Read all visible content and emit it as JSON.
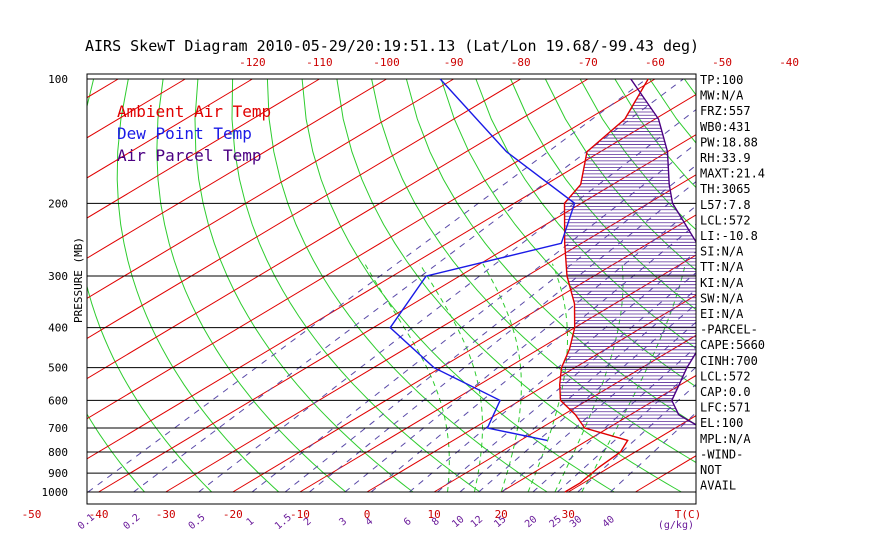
{
  "chart_data": {
    "type": "skew-t",
    "title": "AIRS SkewT Diagram 2010-05-29/20:19:51.13 (Lat/Lon 19.68/-99.43 deg)",
    "ylabel": "PRESSURE (MB)",
    "pressure_axis": {
      "scale": "log",
      "range": [
        1000,
        100
      ],
      "ticks": [
        "100",
        "200",
        "300",
        "400",
        "500",
        "600",
        "700",
        "800",
        "900",
        "1000"
      ]
    },
    "top_temp_ticks": [
      "-120",
      "-110",
      "-100",
      "-90",
      "-80",
      "-70",
      "-60",
      "-50",
      "-40"
    ],
    "bottom_temp_ticks": [
      "-50",
      "-40",
      "-30",
      "-20",
      "-10",
      "0",
      "10",
      "20",
      "30"
    ],
    "temp_axis_label": "T(C)",
    "mixing_ratio_ticks": [
      "0.1",
      "0.2",
      "0.5",
      "1",
      "1.5",
      "2",
      "3",
      "4",
      "6",
      "8",
      "10",
      "12",
      "15",
      "20",
      "25",
      "30",
      "40"
    ],
    "mixing_ratio_label": "g/kg",
    "legend": [
      {
        "label": "Ambient Air Temp",
        "color": "#e00000"
      },
      {
        "label": "Dew Point Temp",
        "color": "#1a1ae6"
      },
      {
        "label": "Air Parcel Temp",
        "color": "#4b0082"
      }
    ],
    "series": [
      {
        "name": "Ambient Air Temp",
        "color": "#e00000",
        "points": [
          [
            1000,
            29.5
          ],
          [
            950,
            29.5
          ],
          [
            870,
            28.4
          ],
          [
            800,
            27.8
          ],
          [
            750,
            26.0
          ],
          [
            700,
            16.5
          ],
          [
            650,
            11.8
          ],
          [
            600,
            6.0
          ],
          [
            550,
            2.0
          ],
          [
            500,
            -2.0
          ],
          [
            450,
            -5.5
          ],
          [
            400,
            -10.0
          ],
          [
            350,
            -16.0
          ],
          [
            300,
            -24.0
          ],
          [
            250,
            -32.5
          ],
          [
            200,
            -42.5
          ],
          [
            180,
            -44.8
          ],
          [
            150,
            -52.0
          ],
          [
            125,
            -54.5
          ],
          [
            100,
            -61.0
          ]
        ]
      },
      {
        "name": "Dew Point Temp",
        "color": "#1a1ae6",
        "points": [
          [
            750,
            14.0
          ],
          [
            700,
            2.0
          ],
          [
            600,
            -3.0
          ],
          [
            500,
            -21.0
          ],
          [
            400,
            -37.5
          ],
          [
            300,
            -45.0
          ],
          [
            250,
            -33.0
          ],
          [
            200,
            -41.0
          ],
          [
            150,
            -64.0
          ],
          [
            100,
            -92.0
          ]
        ]
      },
      {
        "name": "Air Parcel Temp",
        "color": "#4b0082",
        "points": [
          [
            700,
            33.9
          ],
          [
            650,
            27.2
          ],
          [
            600,
            22.6
          ],
          [
            550,
            19.8
          ],
          [
            500,
            16.7
          ],
          [
            450,
            13.7
          ],
          [
            400,
            9.7
          ],
          [
            350,
            4.5
          ],
          [
            300,
            -3.0
          ],
          [
            250,
            -12.8
          ],
          [
            200,
            -26.4
          ],
          [
            180,
            -31.6
          ],
          [
            150,
            -40.0
          ],
          [
            125,
            -49.5
          ],
          [
            100,
            -63.6
          ]
        ]
      }
    ],
    "indices": [
      "TP:100",
      "MW:N/A",
      "FRZ:557",
      "WB0:431",
      "PW:18.88",
      "RH:33.9",
      "MAXT:21.4",
      "TH:3065",
      "L57:7.8",
      "LCL:572",
      "LI:-10.8",
      "SI:N/A",
      "TT:N/A",
      "KI:N/A",
      "SW:N/A",
      "EI:N/A",
      "-PARCEL-",
      "CAPE:5660",
      "CINH:700",
      "LCL:572",
      "CAP:0.0",
      "LFC:571",
      "EL:100",
      "MPL:N/A",
      "-WIND-",
      "NOT",
      "AVAIL"
    ]
  }
}
